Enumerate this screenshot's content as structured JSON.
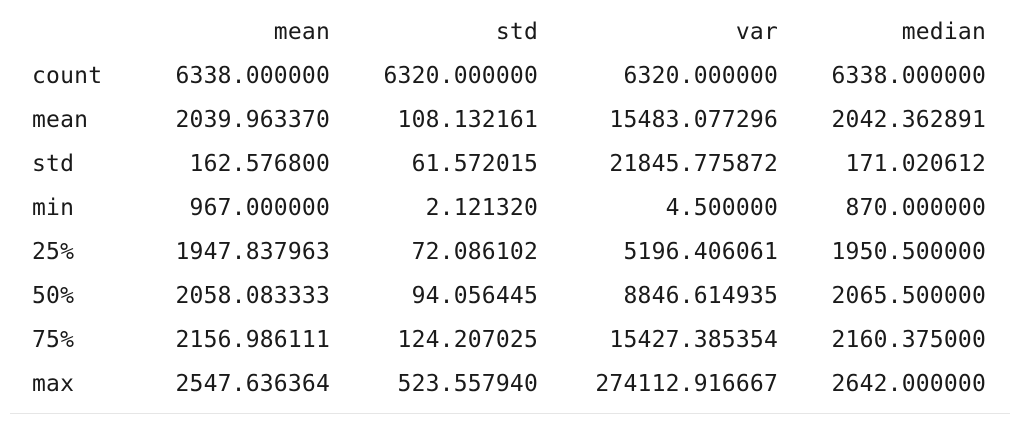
{
  "table": {
    "columns": [
      "",
      "mean",
      "std",
      "var",
      "median"
    ],
    "rows": [
      {
        "index": "count",
        "values": [
          "6338.000000",
          "6320.000000",
          "6320.000000",
          "6338.000000"
        ]
      },
      {
        "index": "mean",
        "values": [
          "2039.963370",
          "108.132161",
          "15483.077296",
          "2042.362891"
        ]
      },
      {
        "index": "std",
        "values": [
          "162.576800",
          "61.572015",
          "21845.775872",
          "171.020612"
        ]
      },
      {
        "index": "min",
        "values": [
          "967.000000",
          "2.121320",
          "4.500000",
          "870.000000"
        ]
      },
      {
        "index": "25%",
        "values": [
          "1947.837963",
          "72.086102",
          "5196.406061",
          "1950.500000"
        ]
      },
      {
        "index": "50%",
        "values": [
          "2058.083333",
          "94.056445",
          "8846.614935",
          "2065.500000"
        ]
      },
      {
        "index": "75%",
        "values": [
          "2156.986111",
          "124.207025",
          "15427.385354",
          "2160.375000"
        ]
      },
      {
        "index": "max",
        "values": [
          "2547.636364",
          "523.557940",
          "274112.916667",
          "2642.000000"
        ]
      }
    ]
  }
}
